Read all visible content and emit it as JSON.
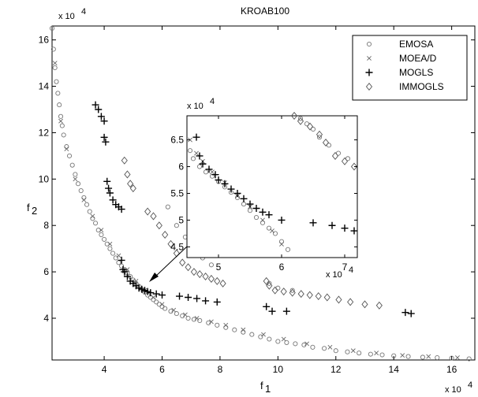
{
  "chart_data": {
    "type": "scatter",
    "title": "KROAB100",
    "xlabel": "f",
    "xlabel_sub": "1",
    "ylabel": "f",
    "ylabel_sub": "2",
    "x_multiplier": "x 10",
    "y_multiplier": "x 10",
    "multiplier_exp": "4",
    "xlim": [
      2.2,
      16.8
    ],
    "ylim": [
      2.2,
      16.6
    ],
    "x_ticks": [
      4,
      6,
      8,
      10,
      12,
      14,
      16
    ],
    "y_ticks": [
      4,
      6,
      8,
      10,
      12,
      14,
      16
    ],
    "x_tick_labels": [
      "4",
      "6",
      "8",
      "10",
      "12",
      "14",
      "16"
    ],
    "y_tick_labels": [
      "4",
      "6",
      "8",
      "10",
      "12",
      "14",
      "16"
    ],
    "legend_position": "top-right",
    "series": [
      {
        "name": "EMOSA",
        "marker": "circle",
        "points": [
          [
            2.2,
            16.5
          ],
          [
            2.25,
            15.6
          ],
          [
            2.3,
            14.8
          ],
          [
            2.35,
            14.2
          ],
          [
            2.4,
            13.7
          ],
          [
            2.45,
            13.2
          ],
          [
            2.5,
            12.7
          ],
          [
            2.55,
            12.3
          ],
          [
            2.6,
            11.9
          ],
          [
            2.7,
            11.4
          ],
          [
            2.8,
            11.0
          ],
          [
            2.9,
            10.6
          ],
          [
            3.0,
            10.2
          ],
          [
            3.1,
            9.8
          ],
          [
            3.2,
            9.5
          ],
          [
            3.3,
            9.2
          ],
          [
            3.4,
            8.9
          ],
          [
            3.5,
            8.6
          ],
          [
            3.6,
            8.3
          ],
          [
            3.7,
            8.1
          ],
          [
            3.8,
            7.8
          ],
          [
            3.9,
            7.6
          ],
          [
            4.0,
            7.4
          ],
          [
            4.1,
            7.2
          ],
          [
            4.2,
            7.0
          ],
          [
            4.3,
            6.8
          ],
          [
            4.4,
            6.6
          ],
          [
            4.5,
            6.4
          ],
          [
            4.6,
            6.25
          ],
          [
            4.7,
            6.1
          ],
          [
            4.8,
            5.95
          ],
          [
            4.9,
            5.8
          ],
          [
            5.0,
            5.65
          ],
          [
            5.1,
            5.5
          ],
          [
            5.2,
            5.38
          ],
          [
            5.3,
            5.25
          ],
          [
            5.4,
            5.12
          ],
          [
            5.5,
            5.0
          ],
          [
            5.6,
            4.9
          ],
          [
            5.7,
            4.8
          ],
          [
            5.8,
            4.7
          ],
          [
            5.9,
            4.6
          ],
          [
            6.0,
            4.5
          ],
          [
            6.1,
            4.42
          ],
          [
            6.3,
            4.3
          ],
          [
            6.5,
            4.2
          ],
          [
            6.7,
            4.1
          ],
          [
            6.9,
            4.0
          ],
          [
            7.1,
            3.95
          ],
          [
            7.3,
            3.9
          ],
          [
            7.6,
            3.8
          ],
          [
            7.9,
            3.7
          ],
          [
            8.2,
            3.6
          ],
          [
            8.5,
            3.5
          ],
          [
            8.8,
            3.4
          ],
          [
            9.1,
            3.3
          ],
          [
            9.4,
            3.2
          ],
          [
            9.7,
            3.1
          ],
          [
            10.0,
            3.0
          ],
          [
            10.3,
            2.95
          ],
          [
            10.6,
            2.9
          ],
          [
            10.9,
            2.85
          ],
          [
            11.2,
            2.75
          ],
          [
            11.6,
            2.7
          ],
          [
            12.0,
            2.6
          ],
          [
            12.4,
            2.55
          ],
          [
            12.8,
            2.5
          ],
          [
            13.2,
            2.45
          ],
          [
            13.6,
            2.42
          ],
          [
            14.0,
            2.38
          ],
          [
            14.5,
            2.35
          ],
          [
            15.0,
            2.32
          ],
          [
            15.5,
            2.3
          ],
          [
            16.0,
            2.28
          ],
          [
            16.6,
            2.25
          ],
          [
            6.2,
            8.8
          ],
          [
            6.5,
            8.0
          ],
          [
            6.8,
            7.5
          ],
          [
            7.1,
            7.0
          ],
          [
            7.4,
            6.6
          ],
          [
            7.7,
            6.3
          ],
          [
            9.7,
            5.5
          ],
          [
            10.0,
            5.3
          ],
          [
            10.5,
            5.2
          ]
        ]
      },
      {
        "name": "MOEA/D",
        "marker": "x",
        "points": [
          [
            2.3,
            15.0
          ],
          [
            2.5,
            12.5
          ],
          [
            2.7,
            11.3
          ],
          [
            3.0,
            10.0
          ],
          [
            3.3,
            9.1
          ],
          [
            3.6,
            8.4
          ],
          [
            3.9,
            7.8
          ],
          [
            4.2,
            7.2
          ],
          [
            4.5,
            6.7
          ],
          [
            4.8,
            6.1
          ],
          [
            5.1,
            5.6
          ],
          [
            5.4,
            5.2
          ],
          [
            5.7,
            4.9
          ],
          [
            6.0,
            4.6
          ],
          [
            6.4,
            4.35
          ],
          [
            6.8,
            4.15
          ],
          [
            7.2,
            4.0
          ],
          [
            7.7,
            3.85
          ],
          [
            8.2,
            3.7
          ],
          [
            8.8,
            3.5
          ],
          [
            9.5,
            3.3
          ],
          [
            10.2,
            3.1
          ],
          [
            11.0,
            2.9
          ],
          [
            11.8,
            2.75
          ],
          [
            12.6,
            2.6
          ],
          [
            13.4,
            2.5
          ],
          [
            14.3,
            2.4
          ],
          [
            15.2,
            2.35
          ],
          [
            16.2,
            2.3
          ]
        ]
      },
      {
        "name": "MOGLS",
        "marker": "plus",
        "points": [
          [
            3.7,
            13.2
          ],
          [
            3.8,
            13.0
          ],
          [
            3.9,
            12.7
          ],
          [
            4.0,
            12.5
          ],
          [
            4.0,
            11.8
          ],
          [
            4.05,
            11.6
          ],
          [
            4.1,
            9.9
          ],
          [
            4.15,
            9.6
          ],
          [
            4.2,
            9.4
          ],
          [
            4.3,
            9.1
          ],
          [
            4.4,
            8.9
          ],
          [
            4.5,
            8.8
          ],
          [
            4.6,
            8.7
          ],
          [
            4.6,
            6.5
          ],
          [
            4.65,
            6.1
          ],
          [
            4.7,
            6.0
          ],
          [
            4.8,
            5.8
          ],
          [
            4.9,
            5.6
          ],
          [
            5.0,
            5.5
          ],
          [
            5.1,
            5.4
          ],
          [
            5.2,
            5.3
          ],
          [
            5.3,
            5.25
          ],
          [
            5.4,
            5.2
          ],
          [
            5.5,
            5.15
          ],
          [
            5.6,
            5.1
          ],
          [
            5.8,
            5.05
          ],
          [
            6.0,
            5.0
          ],
          [
            6.6,
            4.95
          ],
          [
            6.9,
            4.9
          ],
          [
            7.2,
            4.85
          ],
          [
            7.5,
            4.75
          ],
          [
            7.9,
            4.7
          ],
          [
            9.6,
            4.5
          ],
          [
            9.8,
            4.3
          ],
          [
            10.3,
            4.3
          ],
          [
            14.4,
            4.25
          ],
          [
            14.6,
            4.2
          ]
        ]
      },
      {
        "name": "IMMOGLS",
        "marker": "diamond",
        "points": [
          [
            4.7,
            10.8
          ],
          [
            4.8,
            10.2
          ],
          [
            4.9,
            9.8
          ],
          [
            5.0,
            9.6
          ],
          [
            5.5,
            8.6
          ],
          [
            5.7,
            8.4
          ],
          [
            5.9,
            8.0
          ],
          [
            6.1,
            7.6
          ],
          [
            6.3,
            7.2
          ],
          [
            6.5,
            6.8
          ],
          [
            6.7,
            6.4
          ],
          [
            6.9,
            6.2
          ],
          [
            7.1,
            6.0
          ],
          [
            7.3,
            5.9
          ],
          [
            7.5,
            5.8
          ],
          [
            7.7,
            5.7
          ],
          [
            7.9,
            5.6
          ],
          [
            8.1,
            5.5
          ],
          [
            9.6,
            5.6
          ],
          [
            9.7,
            5.4
          ],
          [
            9.9,
            5.2
          ],
          [
            10.2,
            5.15
          ],
          [
            10.5,
            5.1
          ],
          [
            10.8,
            5.05
          ],
          [
            11.1,
            5.0
          ],
          [
            11.4,
            4.95
          ],
          [
            11.7,
            4.9
          ],
          [
            12.1,
            4.8
          ],
          [
            12.5,
            4.7
          ],
          [
            13.0,
            4.6
          ],
          [
            13.5,
            4.55
          ]
        ]
      }
    ],
    "inset": {
      "x_multiplier": "x 10",
      "y_multiplier": "x 10",
      "multiplier_exp": "4",
      "xlim": [
        4.5,
        7.2
      ],
      "ylim": [
        4.3,
        6.95
      ],
      "x_ticks": [
        5,
        6,
        7
      ],
      "y_ticks": [
        4.5,
        5,
        5.5,
        6,
        6.5
      ],
      "x_tick_labels": [
        "5",
        "6",
        "7"
      ],
      "y_tick_labels": [
        "4.5",
        "5",
        "5.5",
        "6",
        "6.5"
      ],
      "points_emosa": [
        [
          4.55,
          6.3
        ],
        [
          4.6,
          6.15
        ],
        [
          4.7,
          6.0
        ],
        [
          4.8,
          5.9
        ],
        [
          4.9,
          5.82
        ],
        [
          5.0,
          5.72
        ],
        [
          5.1,
          5.62
        ],
        [
          5.2,
          5.52
        ],
        [
          5.3,
          5.42
        ],
        [
          5.4,
          5.3
        ],
        [
          5.5,
          5.18
        ],
        [
          5.6,
          5.05
        ],
        [
          5.7,
          4.95
        ],
        [
          5.8,
          4.85
        ],
        [
          5.9,
          4.75
        ],
        [
          6.0,
          4.6
        ],
        [
          6.1,
          4.45
        ],
        [
          6.3,
          6.9
        ],
        [
          6.4,
          6.8
        ],
        [
          6.5,
          6.7
        ],
        [
          6.6,
          6.55
        ],
        [
          6.75,
          6.4
        ],
        [
          6.9,
          6.25
        ],
        [
          7.05,
          6.15
        ]
      ],
      "points_moead": [
        [
          4.55,
          6.5
        ],
        [
          4.65,
          6.25
        ],
        [
          4.75,
          6.1
        ],
        [
          4.9,
          5.9
        ],
        [
          5.1,
          5.7
        ],
        [
          5.3,
          5.45
        ],
        [
          5.5,
          5.25
        ],
        [
          5.7,
          5.0
        ],
        [
          5.85,
          4.8
        ],
        [
          6.0,
          4.55
        ]
      ],
      "points_mogls": [
        [
          4.65,
          6.55
        ],
        [
          4.7,
          6.2
        ],
        [
          4.75,
          6.05
        ],
        [
          4.85,
          5.95
        ],
        [
          4.95,
          5.85
        ],
        [
          5.0,
          5.75
        ],
        [
          5.1,
          5.68
        ],
        [
          5.2,
          5.58
        ],
        [
          5.3,
          5.5
        ],
        [
          5.4,
          5.4
        ],
        [
          5.5,
          5.3
        ],
        [
          5.6,
          5.22
        ],
        [
          5.7,
          5.15
        ],
        [
          5.8,
          5.1
        ],
        [
          6.0,
          5.0
        ],
        [
          6.5,
          4.95
        ],
        [
          6.8,
          4.9
        ],
        [
          7.0,
          4.85
        ],
        [
          7.15,
          4.8
        ]
      ],
      "points_immogls": [
        [
          6.2,
          6.95
        ],
        [
          6.3,
          6.85
        ],
        [
          6.45,
          6.75
        ],
        [
          6.6,
          6.6
        ],
        [
          6.7,
          6.45
        ],
        [
          6.85,
          6.2
        ],
        [
          7.0,
          6.1
        ],
        [
          7.15,
          6.0
        ]
      ]
    }
  }
}
